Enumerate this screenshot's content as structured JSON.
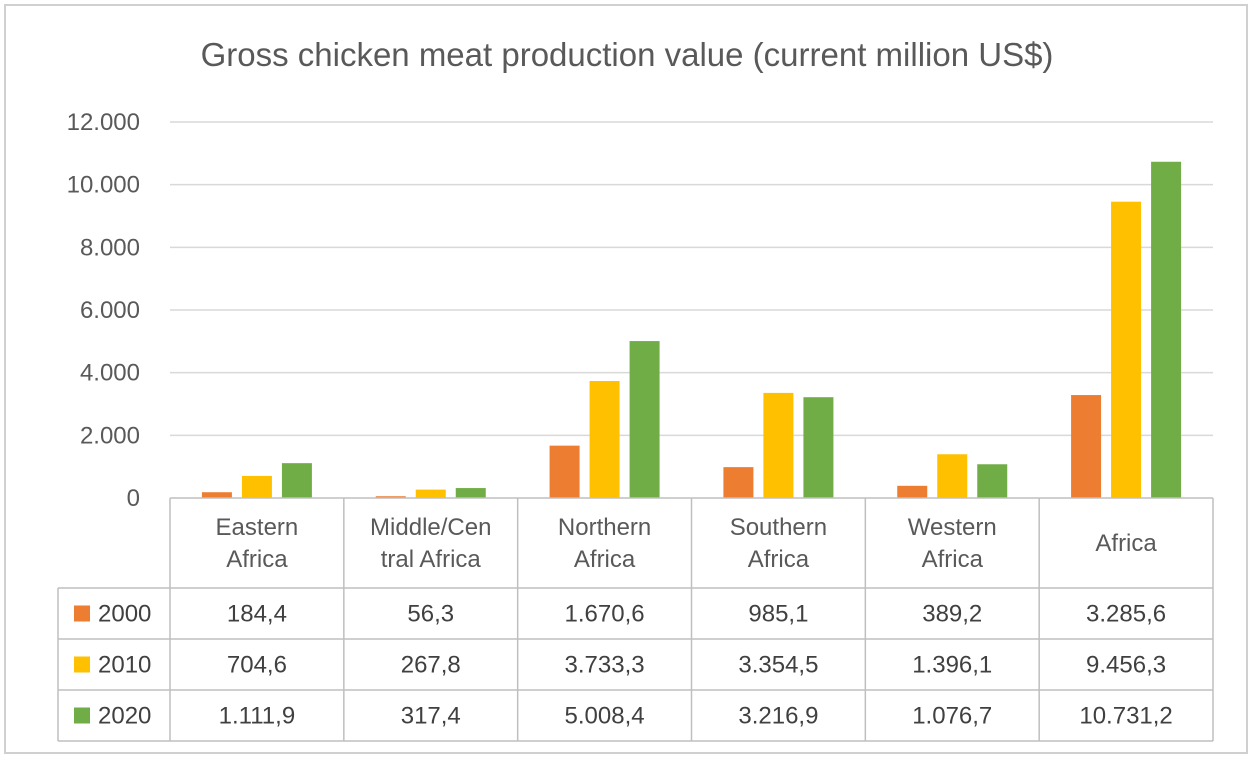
{
  "chart_data": {
    "type": "bar",
    "title": "Gross chicken meat production value (current million US$)",
    "categories": [
      [
        "Eastern",
        "Africa"
      ],
      [
        "Middle/Cen",
        "tral Africa"
      ],
      [
        "Northern",
        "Africa"
      ],
      [
        "Southern",
        "Africa"
      ],
      [
        "Western",
        "Africa"
      ],
      [
        "Africa"
      ]
    ],
    "series": [
      {
        "name": "2000",
        "color": "#ed7d31",
        "values": [
          184.4,
          56.3,
          1670.6,
          985.1,
          389.2,
          3285.6
        ],
        "labels": [
          "184,4",
          "56,3",
          "1.670,6",
          "985,1",
          "389,2",
          "3.285,6"
        ]
      },
      {
        "name": "2010",
        "color": "#ffc000",
        "values": [
          704.6,
          267.8,
          3733.3,
          3354.5,
          1396.1,
          9456.3
        ],
        "labels": [
          "704,6",
          "267,8",
          "3.733,3",
          "3.354,5",
          "1.396,1",
          "9.456,3"
        ]
      },
      {
        "name": "2020",
        "color": "#70ad47",
        "values": [
          1111.9,
          317.4,
          5008.4,
          3216.9,
          1076.7,
          10731.2
        ],
        "labels": [
          "1.111,9",
          "317,4",
          "5.008,4",
          "3.216,9",
          "1.076,7",
          "10.731,2"
        ]
      }
    ],
    "ylim": [
      0,
      12000
    ],
    "yticks": [
      0,
      2000,
      4000,
      6000,
      8000,
      10000,
      12000
    ],
    "ytick_labels": [
      "0",
      "2.000",
      "4.000",
      "6.000",
      "8.000",
      "10.000",
      "12.000"
    ],
    "grid": true,
    "legend": "data-table"
  }
}
